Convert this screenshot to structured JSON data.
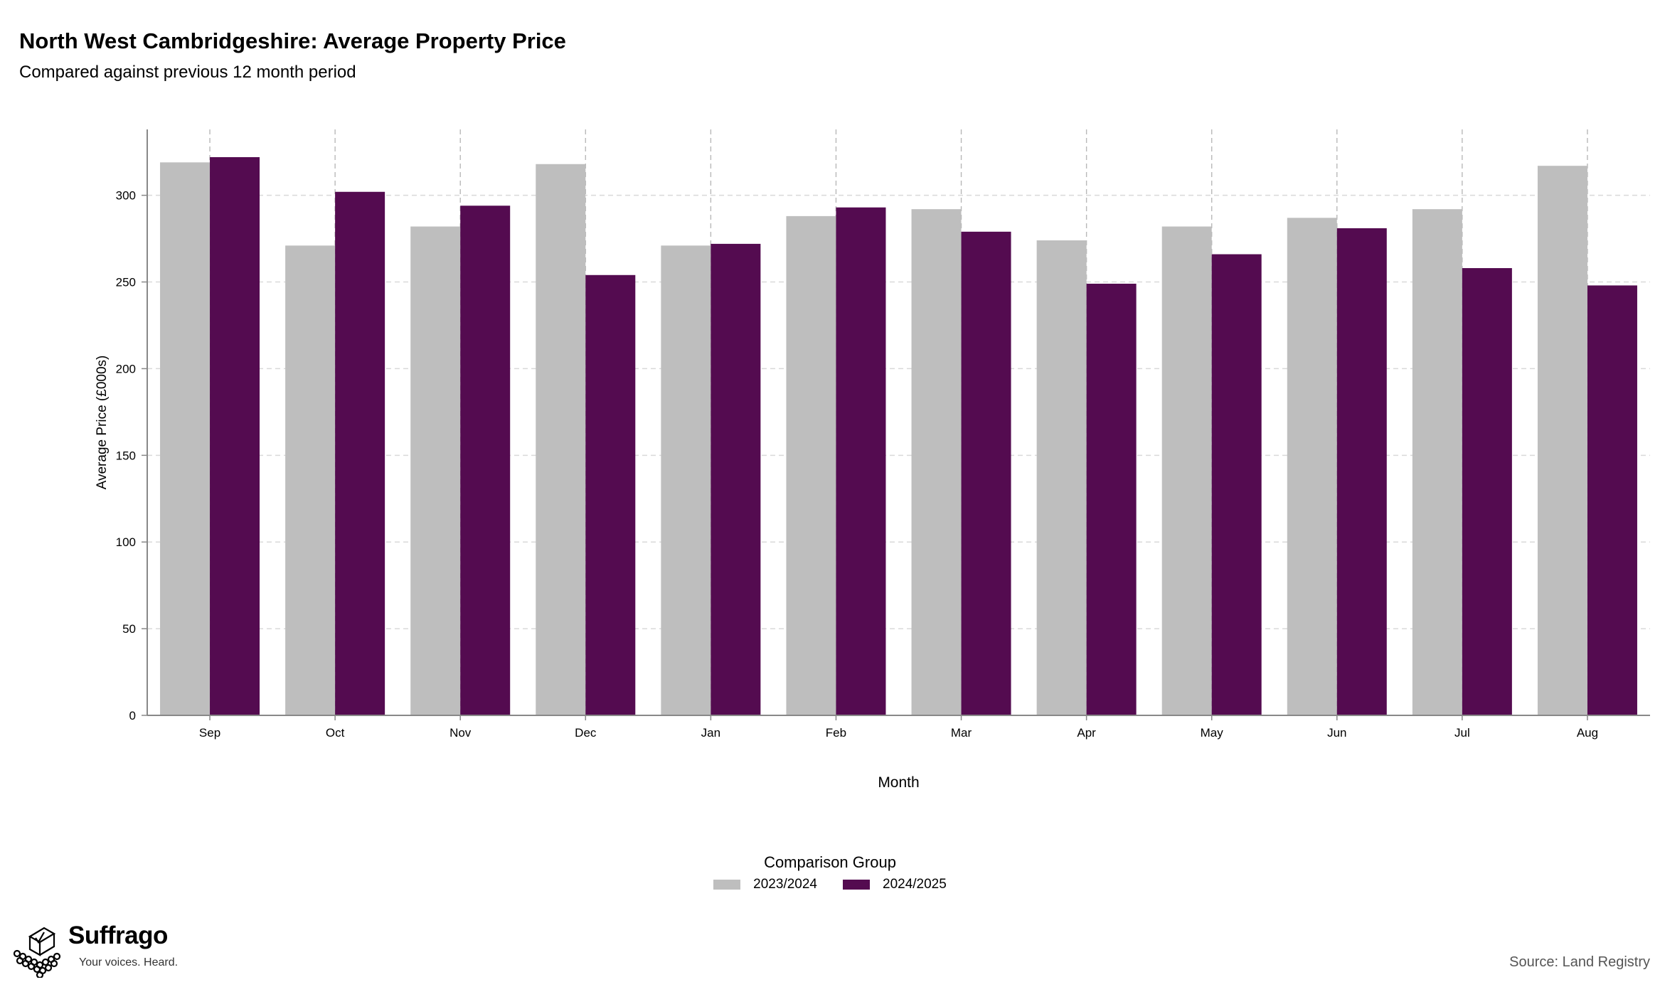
{
  "chart_data": {
    "type": "bar",
    "title": "North West Cambridgeshire: Average Property Price",
    "subtitle": "Compared against previous 12 month period",
    "xlabel": "Month",
    "ylabel": "Average Price (£000s)",
    "ylim": [
      0,
      338
    ],
    "yticks": [
      0,
      50,
      100,
      150,
      200,
      250,
      300
    ],
    "grid": true,
    "categories": [
      "Sep",
      "Oct",
      "Nov",
      "Dec",
      "Jan",
      "Feb",
      "Mar",
      "Apr",
      "May",
      "Jun",
      "Jul",
      "Aug"
    ],
    "series": [
      {
        "name": "2023/2024",
        "color": "#bebebe",
        "values": [
          319,
          271,
          282,
          318,
          271,
          288,
          292,
          274,
          282,
          287,
          292,
          317
        ]
      },
      {
        "name": "2024/2025",
        "color": "#540b50",
        "values": [
          322,
          302,
          294,
          254,
          272,
          293,
          279,
          249,
          266,
          281,
          258,
          248
        ]
      }
    ],
    "legend_title": "Comparison Group",
    "legend_position": "bottom"
  },
  "footer": {
    "brand_name": "Suffrago",
    "brand_tagline": "Your voices. Heard.",
    "source": "Source: Land Registry"
  },
  "icons": {
    "brand_logo": "ballot-box-logo-icon"
  }
}
